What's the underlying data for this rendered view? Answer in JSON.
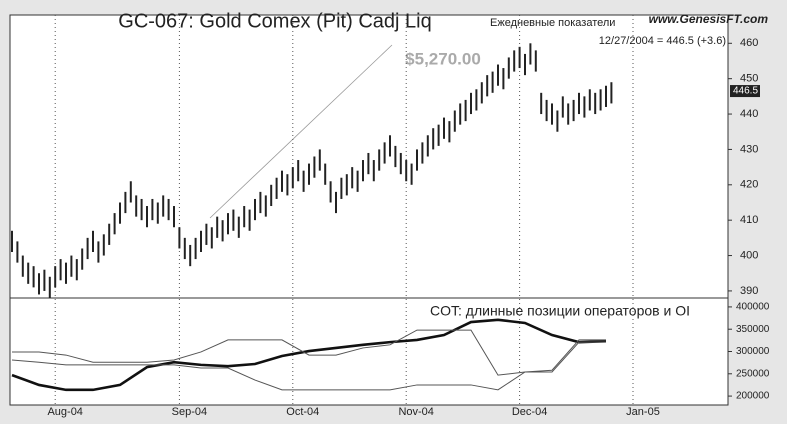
{
  "chart_data": [
    {
      "type": "range_bar",
      "title": "GC-067:  Gold Comex (Pit) Cadj Liq",
      "subtitle": "Ежедневные показатели",
      "source": "www.GenesisFT.com",
      "last_quote": "12/27/2004 = 446.5 (+3.6)",
      "annotation": "$5,270.00",
      "price_marker": 446.5,
      "color": "#222222",
      "categories": [
        null,
        null,
        null,
        null,
        null,
        null,
        null,
        null,
        "Aug-04",
        null,
        null,
        null,
        null,
        null,
        null,
        null,
        null,
        null,
        null,
        null,
        null,
        null,
        null,
        null,
        null,
        null,
        null,
        null,
        null,
        null,
        null,
        "Sep-04",
        null,
        null,
        null,
        null,
        null,
        null,
        null,
        null,
        null,
        null,
        null,
        null,
        null,
        null,
        null,
        null,
        null,
        null,
        null,
        null,
        "Oct-04",
        null,
        null,
        null,
        null,
        null,
        null,
        null,
        null,
        null,
        null,
        null,
        null,
        null,
        null,
        null,
        null,
        null,
        null,
        null,
        null,
        "Nov-04",
        null,
        null,
        null,
        null,
        null,
        null,
        null,
        null,
        null,
        null,
        null,
        null,
        null,
        null,
        null,
        null,
        null,
        null,
        null,
        null,
        "Dec-04",
        null,
        null,
        null,
        null,
        null,
        null,
        null,
        null,
        null,
        null,
        null,
        null,
        null,
        null,
        null,
        null,
        null,
        null,
        null,
        null,
        "Jan-05",
        null,
        null
      ],
      "high": [
        407,
        404,
        400,
        398,
        397,
        395,
        396,
        394,
        397,
        399,
        398,
        400,
        399,
        402,
        405,
        407,
        404,
        406,
        409,
        412,
        415,
        418,
        421,
        417,
        416,
        414,
        416,
        415,
        417,
        416,
        414,
        408,
        405,
        403,
        405,
        407,
        409,
        408,
        411,
        410,
        412,
        413,
        411,
        414,
        413,
        416,
        418,
        417,
        420,
        422,
        424,
        423,
        425,
        427,
        424,
        426,
        428,
        430,
        426,
        421,
        418,
        422,
        423,
        425,
        424,
        427,
        429,
        427,
        430,
        432,
        434,
        431,
        429,
        427,
        426,
        430,
        432,
        434,
        436,
        437,
        439,
        438,
        441,
        443,
        444,
        446,
        447,
        449,
        451,
        452,
        454,
        453,
        456,
        458,
        459,
        457,
        460,
        458,
        446,
        444,
        443,
        441,
        445,
        443,
        444,
        446,
        445,
        447,
        446,
        447,
        448,
        449,
        null,
        null,
        null,
        null,
        null,
        null
      ],
      "low": [
        401,
        398,
        394,
        392,
        391,
        389,
        390,
        388,
        391,
        393,
        392,
        394,
        393,
        396,
        399,
        401,
        398,
        400,
        403,
        406,
        409,
        412,
        415,
        411,
        410,
        408,
        410,
        409,
        411,
        410,
        408,
        402,
        399,
        397,
        399,
        401,
        403,
        402,
        405,
        404,
        406,
        407,
        405,
        408,
        407,
        410,
        412,
        411,
        414,
        416,
        418,
        417,
        419,
        421,
        418,
        420,
        422,
        424,
        420,
        415,
        412,
        416,
        417,
        419,
        418,
        421,
        423,
        421,
        424,
        426,
        428,
        425,
        423,
        421,
        420,
        424,
        426,
        428,
        430,
        431,
        433,
        432,
        435,
        437,
        438,
        440,
        441,
        443,
        445,
        446,
        448,
        447,
        450,
        452,
        453,
        451,
        454,
        452,
        440,
        438,
        437,
        435,
        439,
        437,
        438,
        440,
        439,
        441,
        440,
        441,
        442,
        443,
        null,
        null,
        null,
        null,
        null,
        null
      ],
      "ylim": [
        388,
        468
      ],
      "yticks": [
        390,
        400,
        410,
        420,
        430,
        440,
        450,
        460
      ],
      "grid": true
    },
    {
      "type": "line",
      "title": "COT: длинные позиции операторов и OI",
      "categories": [
        null,
        null,
        null,
        null,
        null,
        null,
        null,
        null,
        null,
        null,
        null,
        null,
        null,
        null,
        null,
        null,
        null,
        null,
        null,
        null,
        null,
        null,
        null,
        null
      ],
      "series": [
        {
          "color": "#111111",
          "linewidth": 2.6,
          "values": [
            247000,
            225000,
            214000,
            214000,
            225000,
            265000,
            276000,
            270000,
            267000,
            272000,
            290000,
            301000,
            308000,
            315000,
            321000,
            326000,
            337000,
            366000,
            371000,
            364000,
            337000,
            321000,
            323000,
            null
          ]
        },
        {
          "color": "#555555",
          "linewidth": 1,
          "values": [
            299000,
            299000,
            292000,
            276000,
            276000,
            276000,
            281000,
            299000,
            326000,
            326000,
            326000,
            292000,
            292000,
            308000,
            315000,
            348000,
            348000,
            348000,
            247000,
            254000,
            254000,
            321000,
            321000,
            null
          ]
        },
        {
          "color": "#555555",
          "linewidth": 1,
          "values": [
            281000,
            276000,
            270000,
            270000,
            270000,
            270000,
            270000,
            263000,
            263000,
            236000,
            214000,
            214000,
            214000,
            214000,
            214000,
            225000,
            225000,
            225000,
            214000,
            254000,
            258000,
            326000,
            326000,
            null
          ]
        }
      ],
      "ylim": [
        180000,
        420000
      ],
      "yticks": [
        200000,
        250000,
        300000,
        350000,
        400000
      ]
    }
  ]
}
